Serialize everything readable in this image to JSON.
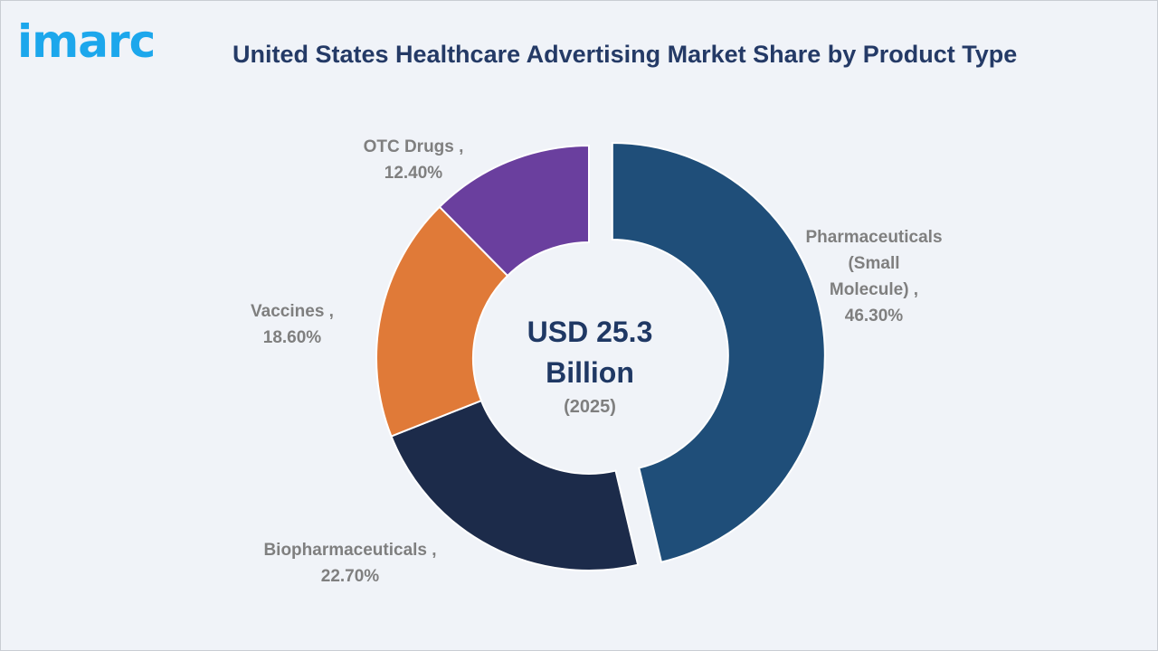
{
  "header": {
    "logo_text": "imarc",
    "title": "United States Healthcare Advertising Market Share by Product Type"
  },
  "chart_data": {
    "type": "pie",
    "title": "United States Healthcare Advertising Market Share by Product Type",
    "center": {
      "line1": "USD 25.3",
      "line2": "Billion",
      "line3": "(2025)"
    },
    "slices": [
      {
        "label_lines": [
          "Pharmaceuticals",
          "(Small",
          "Molecule) ,",
          "46.30%"
        ],
        "category": "Pharmaceuticals (Small Molecule)",
        "value": 46.3,
        "color": "#1f4e79",
        "exploded": true
      },
      {
        "label_lines": [
          "Biopharmaceuticals ,",
          "22.70%"
        ],
        "category": "Biopharmaceuticals",
        "value": 22.7,
        "color": "#1c2b4a"
      },
      {
        "label_lines": [
          "Vaccines ,",
          "18.60%"
        ],
        "category": "Vaccines",
        "value": 18.6,
        "color": "#e07a38"
      },
      {
        "label_lines": [
          "OTC Drugs ,",
          "12.40%"
        ],
        "category": "OTC Drugs",
        "value": 12.4,
        "color": "#6a3f9e"
      }
    ]
  }
}
